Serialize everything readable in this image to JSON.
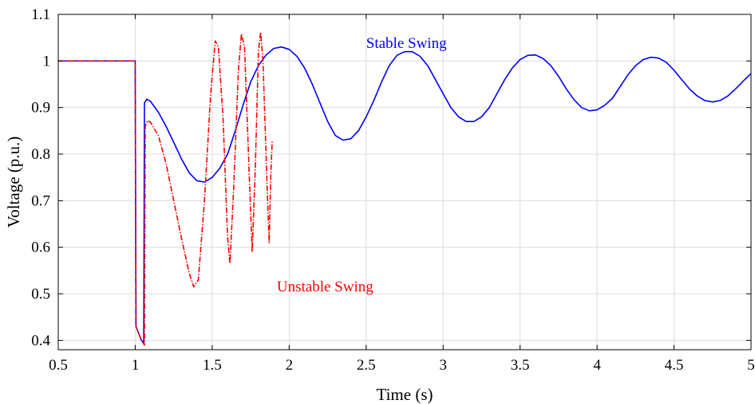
{
  "chart_data": {
    "type": "line",
    "xlabel": "Time (s)",
    "ylabel": "Voltage (p.u.)",
    "xlim": [
      0.5,
      5
    ],
    "ylim": [
      0.38,
      1.1
    ],
    "xticks": [
      "0.5",
      "1",
      "1.5",
      "2",
      "2.5",
      "3",
      "3.5",
      "4",
      "4.5",
      "5"
    ],
    "yticks": [
      "0.4",
      "0.5",
      "0.6",
      "0.7",
      "0.8",
      "0.9",
      "1",
      "1.1"
    ],
    "grid": true,
    "series": [
      {
        "name": "Stable Swing",
        "color": "#0000ff",
        "style": "solid",
        "points": [
          [
            0.5,
            1.0
          ],
          [
            1.0,
            1.0
          ],
          [
            1.005,
            0.43
          ],
          [
            1.04,
            0.4
          ],
          [
            1.055,
            0.395
          ],
          [
            1.06,
            0.91
          ],
          [
            1.075,
            0.918
          ],
          [
            1.1,
            0.913
          ],
          [
            1.15,
            0.89
          ],
          [
            1.2,
            0.86
          ],
          [
            1.25,
            0.825
          ],
          [
            1.3,
            0.79
          ],
          [
            1.35,
            0.76
          ],
          [
            1.4,
            0.743
          ],
          [
            1.45,
            0.74
          ],
          [
            1.5,
            0.75
          ],
          [
            1.55,
            0.77
          ],
          [
            1.6,
            0.8
          ],
          [
            1.65,
            0.85
          ],
          [
            1.7,
            0.905
          ],
          [
            1.75,
            0.955
          ],
          [
            1.8,
            0.99
          ],
          [
            1.85,
            1.013
          ],
          [
            1.9,
            1.027
          ],
          [
            1.95,
            1.03
          ],
          [
            2.0,
            1.025
          ],
          [
            2.05,
            1.01
          ],
          [
            2.1,
            0.985
          ],
          [
            2.15,
            0.95
          ],
          [
            2.2,
            0.91
          ],
          [
            2.25,
            0.87
          ],
          [
            2.3,
            0.84
          ],
          [
            2.35,
            0.83
          ],
          [
            2.4,
            0.833
          ],
          [
            2.45,
            0.85
          ],
          [
            2.5,
            0.88
          ],
          [
            2.55,
            0.915
          ],
          [
            2.6,
            0.955
          ],
          [
            2.65,
            0.99
          ],
          [
            2.7,
            1.012
          ],
          [
            2.75,
            1.02
          ],
          [
            2.8,
            1.02
          ],
          [
            2.85,
            1.01
          ],
          [
            2.9,
            0.99
          ],
          [
            2.95,
            0.96
          ],
          [
            3.0,
            0.93
          ],
          [
            3.05,
            0.9
          ],
          [
            3.1,
            0.88
          ],
          [
            3.15,
            0.87
          ],
          [
            3.2,
            0.87
          ],
          [
            3.25,
            0.88
          ],
          [
            3.3,
            0.9
          ],
          [
            3.35,
            0.93
          ],
          [
            3.4,
            0.96
          ],
          [
            3.45,
            0.985
          ],
          [
            3.5,
            1.003
          ],
          [
            3.55,
            1.012
          ],
          [
            3.6,
            1.013
          ],
          [
            3.65,
            1.005
          ],
          [
            3.7,
            0.99
          ],
          [
            3.75,
            0.967
          ],
          [
            3.8,
            0.94
          ],
          [
            3.85,
            0.917
          ],
          [
            3.9,
            0.9
          ],
          [
            3.95,
            0.893
          ],
          [
            4.0,
            0.895
          ],
          [
            4.05,
            0.905
          ],
          [
            4.1,
            0.92
          ],
          [
            4.15,
            0.945
          ],
          [
            4.2,
            0.97
          ],
          [
            4.25,
            0.99
          ],
          [
            4.3,
            1.003
          ],
          [
            4.35,
            1.008
          ],
          [
            4.4,
            1.006
          ],
          [
            4.45,
            0.997
          ],
          [
            4.5,
            0.98
          ],
          [
            4.55,
            0.96
          ],
          [
            4.6,
            0.94
          ],
          [
            4.65,
            0.925
          ],
          [
            4.7,
            0.915
          ],
          [
            4.75,
            0.912
          ],
          [
            4.8,
            0.915
          ],
          [
            4.85,
            0.925
          ],
          [
            4.9,
            0.94
          ],
          [
            4.95,
            0.957
          ],
          [
            5.0,
            0.973
          ]
        ]
      },
      {
        "name": "Unstable Swing",
        "color": "#ff0000",
        "style": "dashdot",
        "points": [
          [
            0.5,
            1.0
          ],
          [
            1.0,
            1.0
          ],
          [
            1.005,
            0.43
          ],
          [
            1.04,
            0.4
          ],
          [
            1.06,
            0.39
          ],
          [
            1.065,
            0.86
          ],
          [
            1.08,
            0.872
          ],
          [
            1.1,
            0.868
          ],
          [
            1.15,
            0.84
          ],
          [
            1.2,
            0.78
          ],
          [
            1.25,
            0.7
          ],
          [
            1.3,
            0.62
          ],
          [
            1.35,
            0.545
          ],
          [
            1.38,
            0.515
          ],
          [
            1.41,
            0.53
          ],
          [
            1.45,
            0.7
          ],
          [
            1.49,
            0.93
          ],
          [
            1.52,
            1.043
          ],
          [
            1.54,
            1.03
          ],
          [
            1.57,
            0.88
          ],
          [
            1.6,
            0.62
          ],
          [
            1.615,
            0.565
          ],
          [
            1.64,
            0.73
          ],
          [
            1.67,
            0.98
          ],
          [
            1.69,
            1.058
          ],
          [
            1.71,
            1.03
          ],
          [
            1.74,
            0.76
          ],
          [
            1.76,
            0.59
          ],
          [
            1.78,
            0.77
          ],
          [
            1.8,
            1.02
          ],
          [
            1.815,
            1.062
          ],
          [
            1.83,
            1.0
          ],
          [
            1.86,
            0.7
          ],
          [
            1.87,
            0.61
          ],
          [
            1.88,
            0.75
          ],
          [
            1.89,
            0.83
          ]
        ]
      }
    ],
    "annotations": [
      {
        "text": "Stable Swing",
        "x": 2.5,
        "y": 1.028,
        "color": "#0000ff"
      },
      {
        "text": "Unstable Swing",
        "x": 1.92,
        "y": 0.505,
        "color": "#ff0000"
      }
    ]
  }
}
